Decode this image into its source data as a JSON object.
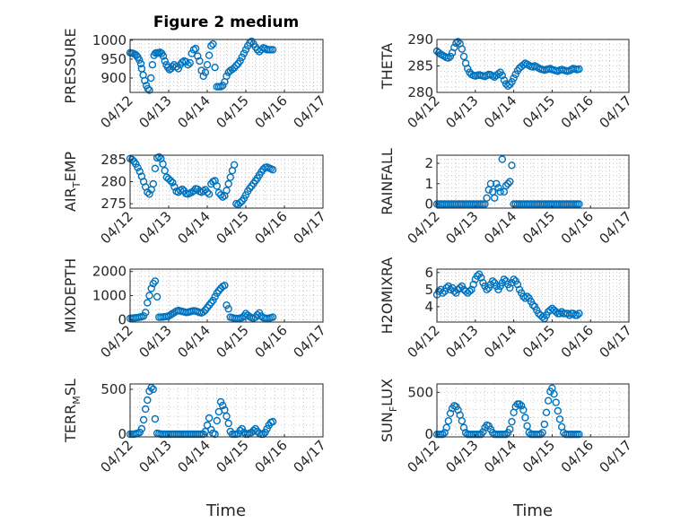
{
  "figure": {
    "title": "Figure 2 medium",
    "marker_color": "#0072bd",
    "x_ticks": [
      "04/12",
      "04/13",
      "04/14",
      "04/15",
      "04/16",
      "04/17"
    ],
    "x_label": "Time"
  },
  "chart_data": [
    {
      "type": "scatter",
      "title": "Figure 2 medium",
      "ylabel": "PRESSURE",
      "ylim": [
        862,
        1002
      ],
      "yticks": [
        900,
        950,
        1000
      ],
      "xlabel": "",
      "x": [
        0.0,
        0.04,
        0.08,
        0.12,
        0.16,
        0.2,
        0.24,
        0.28,
        0.3,
        0.34,
        0.38,
        0.42,
        0.46,
        0.5,
        0.54,
        0.58,
        0.62,
        0.66,
        0.7,
        0.74,
        0.78,
        0.82,
        0.86,
        0.9,
        0.94,
        0.98,
        1.02,
        1.06,
        1.1,
        1.14,
        1.2,
        1.25,
        1.3,
        1.35,
        1.4,
        1.45,
        1.5,
        1.55,
        1.6,
        1.65,
        1.7,
        1.75,
        1.8,
        1.85,
        1.9,
        1.95,
        2.0,
        2.05,
        2.1,
        2.15,
        2.2,
        2.25,
        2.3,
        2.35,
        2.4,
        2.45,
        2.5,
        2.55,
        2.6,
        2.65,
        2.7,
        2.75,
        2.8,
        2.85,
        2.9,
        2.95,
        3.0,
        3.05,
        3.1,
        3.15,
        3.2,
        3.25,
        3.3,
        3.35,
        3.4,
        3.45,
        3.5,
        3.55,
        3.6,
        3.65,
        3.7
      ],
      "y": [
        967,
        966,
        965,
        963,
        960,
        955,
        948,
        938,
        925,
        908,
        893,
        880,
        872,
        868,
        900,
        935,
        960,
        966,
        967,
        966,
        968,
        965,
        958,
        945,
        935,
        928,
        922,
        925,
        930,
        935,
        930,
        925,
        935,
        942,
        945,
        943,
        935,
        940,
        965,
        975,
        978,
        958,
        945,
        920,
        905,
        915,
        935,
        960,
        985,
        990,
        928,
        877,
        877,
        877,
        880,
        890,
        905,
        915,
        920,
        923,
        927,
        933,
        938,
        945,
        955,
        965,
        975,
        985,
        993,
        997,
        990,
        982,
        975,
        970,
        975,
        980,
        978,
        975,
        975,
        975,
        975
      ]
    },
    {
      "type": "scatter",
      "title": "",
      "ylabel": "THETA",
      "ylim": [
        280,
        290
      ],
      "yticks": [
        280,
        285,
        290
      ],
      "xlabel": "",
      "x": [
        0.0,
        0.05,
        0.1,
        0.15,
        0.2,
        0.25,
        0.3,
        0.35,
        0.4,
        0.45,
        0.5,
        0.55,
        0.6,
        0.65,
        0.7,
        0.75,
        0.8,
        0.85,
        0.9,
        0.95,
        1.0,
        1.05,
        1.1,
        1.15,
        1.2,
        1.25,
        1.3,
        1.35,
        1.4,
        1.45,
        1.5,
        1.55,
        1.6,
        1.65,
        1.7,
        1.75,
        1.8,
        1.85,
        1.9,
        1.95,
        2.0,
        2.05,
        2.1,
        2.15,
        2.2,
        2.25,
        2.3,
        2.35,
        2.4,
        2.45,
        2.5,
        2.55,
        2.6,
        2.65,
        2.7,
        2.75,
        2.8,
        2.85,
        2.9,
        2.95,
        3.0,
        3.05,
        3.1,
        3.15,
        3.2,
        3.25,
        3.3,
        3.35,
        3.4,
        3.45,
        3.5,
        3.55,
        3.6,
        3.65,
        3.7
      ],
      "y": [
        287.8,
        287.5,
        287.2,
        287.0,
        286.8,
        286.6,
        286.5,
        286.8,
        287.5,
        288.5,
        289.3,
        289.6,
        289.2,
        288.2,
        286.8,
        285.5,
        284.5,
        283.8,
        283.4,
        283.2,
        283.1,
        283.2,
        283.3,
        283.2,
        283.1,
        283.0,
        283.2,
        283.4,
        283.3,
        283.1,
        282.9,
        283.2,
        283.5,
        283.8,
        283.2,
        282.3,
        281.6,
        281.2,
        281.5,
        282.0,
        282.7,
        283.4,
        284.1,
        284.6,
        284.9,
        285.2,
        285.5,
        285.3,
        285.1,
        284.9,
        284.8,
        285.0,
        284.8,
        284.6,
        284.4,
        284.3,
        284.2,
        284.3,
        284.4,
        284.5,
        284.3,
        284.2,
        284.1,
        284.0,
        284.2,
        284.3,
        284.2,
        284.1,
        284.0,
        284.1,
        284.3,
        284.5,
        284.4,
        284.3,
        284.4
      ]
    },
    {
      "type": "scatter",
      "title": "",
      "ylabel": "AIR_TEMP",
      "ylim": [
        274,
        286
      ],
      "yticks": [
        275,
        280,
        285
      ],
      "xlabel": "",
      "x": [
        0.0,
        0.05,
        0.1,
        0.15,
        0.2,
        0.25,
        0.3,
        0.35,
        0.4,
        0.45,
        0.5,
        0.55,
        0.6,
        0.65,
        0.7,
        0.75,
        0.8,
        0.85,
        0.9,
        0.95,
        1.0,
        1.05,
        1.1,
        1.15,
        1.2,
        1.25,
        1.3,
        1.35,
        1.4,
        1.45,
        1.5,
        1.55,
        1.6,
        1.65,
        1.7,
        1.75,
        1.8,
        1.85,
        1.9,
        1.95,
        2.0,
        2.05,
        2.1,
        2.15,
        2.2,
        2.25,
        2.3,
        2.35,
        2.4,
        2.45,
        2.5,
        2.55,
        2.6,
        2.65,
        2.7,
        2.75,
        2.8,
        2.85,
        2.9,
        2.95,
        3.0,
        3.05,
        3.1,
        3.15,
        3.2,
        3.25,
        3.3,
        3.35,
        3.4,
        3.45,
        3.5,
        3.55,
        3.6,
        3.65,
        3.7
      ],
      "y": [
        285.2,
        285.0,
        284.6,
        284.0,
        283.2,
        282.3,
        281.2,
        280.0,
        278.8,
        277.6,
        277.2,
        278.2,
        279.5,
        283.0,
        285.4,
        285.6,
        285.2,
        284.0,
        282.5,
        281.0,
        280.6,
        280.2,
        279.8,
        278.8,
        277.8,
        277.6,
        278.0,
        278.3,
        277.9,
        277.3,
        277.2,
        277.4,
        277.6,
        277.9,
        278.4,
        278.3,
        277.8,
        277.6,
        277.9,
        278.2,
        277.6,
        277.2,
        279.5,
        280.0,
        280.2,
        279.0,
        277.5,
        277.0,
        276.5,
        276.8,
        278.0,
        279.5,
        281.0,
        282.5,
        283.8,
        275.0,
        274.8,
        275.2,
        275.6,
        276.2,
        277.0,
        277.8,
        278.5,
        279.0,
        279.6,
        280.2,
        280.8,
        281.5,
        282.2,
        282.8,
        283.2,
        283.3,
        283.1,
        282.9,
        282.7
      ]
    },
    {
      "type": "scatter",
      "title": "",
      "ylabel": "RAINFALL",
      "ylim": [
        -0.2,
        2.4
      ],
      "yticks": [
        0,
        1,
        2
      ],
      "xlabel": "",
      "x": [
        0.0,
        0.05,
        0.1,
        0.15,
        0.2,
        0.25,
        0.3,
        0.35,
        0.4,
        0.45,
        0.5,
        0.55,
        0.6,
        0.65,
        0.7,
        0.75,
        0.8,
        0.85,
        0.9,
        0.95,
        1.0,
        1.05,
        1.1,
        1.15,
        1.2,
        1.25,
        1.3,
        1.35,
        1.4,
        1.45,
        1.5,
        1.55,
        1.6,
        1.65,
        1.7,
        1.75,
        1.8,
        1.85,
        1.9,
        1.95,
        2.0,
        2.05,
        2.1,
        2.15,
        2.2,
        2.25,
        2.3,
        2.35,
        2.4,
        2.45,
        2.5,
        2.55,
        2.6,
        2.65,
        2.7,
        2.75,
        2.8,
        2.85,
        2.9,
        2.95,
        3.0,
        3.05,
        3.1,
        3.15,
        3.2,
        3.25,
        3.3,
        3.35,
        3.4,
        3.45,
        3.5,
        3.55,
        3.6,
        3.65,
        3.7
      ],
      "y": [
        0,
        0,
        0,
        0,
        0,
        0,
        0,
        0,
        0,
        0,
        0,
        0,
        0,
        0,
        0,
        0,
        0,
        0,
        0,
        0,
        0,
        0,
        0,
        0,
        0,
        0,
        0.3,
        0.7,
        1.0,
        0.6,
        0.3,
        1.0,
        0.8,
        0.6,
        2.2,
        0.6,
        0.9,
        1.0,
        1.1,
        1.9,
        0,
        0,
        0,
        0,
        0,
        0,
        0,
        0,
        0,
        0,
        0,
        0,
        0,
        0,
        0,
        0,
        0,
        0,
        0,
        0,
        0,
        0,
        0,
        0,
        0,
        0,
        0,
        0,
        0,
        0,
        0,
        0,
        0,
        0,
        0
      ]
    },
    {
      "type": "scatter",
      "title": "",
      "ylabel": "MIXDEPTH",
      "ylim": [
        -100,
        2100
      ],
      "yticks": [
        0,
        1000,
        2000
      ],
      "xlabel": "",
      "x": [
        0.0,
        0.05,
        0.1,
        0.15,
        0.2,
        0.25,
        0.3,
        0.35,
        0.4,
        0.45,
        0.5,
        0.55,
        0.6,
        0.65,
        0.7,
        0.75,
        0.8,
        0.85,
        0.9,
        0.95,
        1.0,
        1.05,
        1.1,
        1.15,
        1.2,
        1.25,
        1.3,
        1.35,
        1.4,
        1.45,
        1.5,
        1.55,
        1.6,
        1.65,
        1.7,
        1.75,
        1.8,
        1.85,
        1.9,
        1.95,
        2.0,
        2.05,
        2.1,
        2.15,
        2.2,
        2.25,
        2.3,
        2.35,
        2.4,
        2.45,
        2.5,
        2.55,
        2.6,
        2.65,
        2.7,
        2.75,
        2.8,
        2.85,
        2.9,
        2.95,
        3.0,
        3.05,
        3.1,
        3.15,
        3.2,
        3.25,
        3.3,
        3.35,
        3.4,
        3.45,
        3.5,
        3.55,
        3.6,
        3.65,
        3.7
      ],
      "y": [
        50,
        60,
        70,
        80,
        90,
        100,
        120,
        150,
        300,
        700,
        1000,
        1300,
        1500,
        1600,
        950,
        100,
        100,
        110,
        120,
        130,
        150,
        200,
        250,
        300,
        350,
        380,
        360,
        340,
        320,
        300,
        310,
        330,
        350,
        370,
        360,
        330,
        300,
        280,
        320,
        400,
        500,
        600,
        700,
        800,
        950,
        1100,
        1200,
        1300,
        1380,
        1420,
        600,
        450,
        100,
        80,
        60,
        50,
        40,
        60,
        80,
        150,
        250,
        180,
        120,
        80,
        60,
        100,
        200,
        280,
        150,
        80,
        60,
        50,
        60,
        80,
        100
      ]
    },
    {
      "type": "scatter",
      "title": "",
      "ylabel": "H2OMIXRA",
      "ylim": [
        3.1,
        6.2
      ],
      "yticks": [
        4,
        5,
        6
      ],
      "xlabel": "",
      "x": [
        0.0,
        0.05,
        0.1,
        0.15,
        0.2,
        0.25,
        0.3,
        0.35,
        0.4,
        0.45,
        0.5,
        0.55,
        0.6,
        0.65,
        0.7,
        0.75,
        0.8,
        0.85,
        0.9,
        0.95,
        1.0,
        1.05,
        1.1,
        1.15,
        1.2,
        1.25,
        1.3,
        1.35,
        1.4,
        1.45,
        1.5,
        1.55,
        1.6,
        1.65,
        1.7,
        1.75,
        1.8,
        1.85,
        1.9,
        1.95,
        2.0,
        2.05,
        2.1,
        2.15,
        2.2,
        2.25,
        2.3,
        2.35,
        2.4,
        2.45,
        2.5,
        2.55,
        2.6,
        2.65,
        2.7,
        2.75,
        2.8,
        2.85,
        2.9,
        2.95,
        3.0,
        3.05,
        3.1,
        3.15,
        3.2,
        3.25,
        3.3,
        3.35,
        3.4,
        3.45,
        3.5,
        3.55,
        3.6,
        3.65,
        3.7
      ],
      "y": [
        4.7,
        4.9,
        5.0,
        4.8,
        4.9,
        5.1,
        5.2,
        5.0,
        5.1,
        4.9,
        4.8,
        5.0,
        5.1,
        5.2,
        5.0,
        4.9,
        4.8,
        4.9,
        5.0,
        5.3,
        5.6,
        5.8,
        5.9,
        5.7,
        5.4,
        5.2,
        5.0,
        5.1,
        5.3,
        5.5,
        5.4,
        5.2,
        5.0,
        5.2,
        5.4,
        5.6,
        5.5,
        5.3,
        5.1,
        5.4,
        5.6,
        5.5,
        5.3,
        5.0,
        4.8,
        4.6,
        4.5,
        4.6,
        4.5,
        4.3,
        4.1,
        4.0,
        3.8,
        3.6,
        3.5,
        3.4,
        3.3,
        3.5,
        3.7,
        3.8,
        3.9,
        3.8,
        3.7,
        3.6,
        3.6,
        3.7,
        3.6,
        3.6,
        3.6,
        3.5,
        3.6,
        3.6,
        3.5,
        3.5,
        3.6
      ]
    },
    {
      "type": "scatter",
      "title": "",
      "ylabel": "TERR_MSL",
      "ylim": [
        -30,
        560
      ],
      "yticks": [
        0,
        500
      ],
      "xlabel": "Time",
      "x": [
        0.0,
        0.05,
        0.1,
        0.15,
        0.2,
        0.25,
        0.3,
        0.35,
        0.4,
        0.45,
        0.5,
        0.55,
        0.6,
        0.65,
        0.7,
        0.75,
        0.8,
        0.85,
        0.9,
        0.95,
        1.0,
        1.05,
        1.1,
        1.15,
        1.2,
        1.25,
        1.3,
        1.35,
        1.4,
        1.45,
        1.5,
        1.55,
        1.6,
        1.65,
        1.7,
        1.75,
        1.8,
        1.85,
        1.9,
        1.95,
        2.0,
        2.05,
        2.1,
        2.15,
        2.2,
        2.25,
        2.3,
        2.35,
        2.4,
        2.45,
        2.5,
        2.55,
        2.6,
        2.65,
        2.7,
        2.75,
        2.8,
        2.85,
        2.9,
        2.95,
        3.0,
        3.05,
        3.1,
        3.15,
        3.2,
        3.25,
        3.3,
        3.35,
        3.4,
        3.45,
        3.5,
        3.55,
        3.6,
        3.65,
        3.7
      ],
      "y": [
        0,
        0,
        0,
        5,
        10,
        20,
        60,
        160,
        280,
        380,
        480,
        520,
        500,
        170,
        10,
        5,
        0,
        0,
        0,
        0,
        0,
        0,
        0,
        0,
        0,
        0,
        0,
        0,
        0,
        0,
        0,
        0,
        0,
        0,
        0,
        0,
        0,
        0,
        0,
        30,
        100,
        180,
        50,
        10,
        0,
        150,
        250,
        360,
        320,
        270,
        200,
        120,
        30,
        0,
        0,
        0,
        5,
        40,
        60,
        20,
        0,
        0,
        10,
        20,
        40,
        60,
        30,
        10,
        0,
        0,
        20,
        60,
        100,
        130,
        140
      ]
    },
    {
      "type": "scatter",
      "title": "",
      "ylabel": "SUN_FLUX",
      "ylim": [
        -30,
        600
      ],
      "yticks": [
        0,
        500
      ],
      "xlabel": "Time",
      "x": [
        0.0,
        0.05,
        0.1,
        0.15,
        0.2,
        0.25,
        0.3,
        0.35,
        0.4,
        0.45,
        0.5,
        0.55,
        0.6,
        0.65,
        0.7,
        0.75,
        0.8,
        0.85,
        0.9,
        0.95,
        1.0,
        1.05,
        1.1,
        1.15,
        1.2,
        1.25,
        1.3,
        1.35,
        1.4,
        1.45,
        1.5,
        1.55,
        1.6,
        1.65,
        1.7,
        1.75,
        1.8,
        1.85,
        1.9,
        1.95,
        2.0,
        2.05,
        2.1,
        2.15,
        2.2,
        2.25,
        2.3,
        2.35,
        2.4,
        2.45,
        2.5,
        2.55,
        2.6,
        2.65,
        2.7,
        2.75,
        2.8,
        2.85,
        2.9,
        2.95,
        3.0,
        3.05,
        3.1,
        3.15,
        3.2,
        3.25,
        3.3,
        3.35,
        3.4,
        3.45,
        3.5,
        3.55,
        3.6,
        3.65,
        3.7
      ],
      "y": [
        0,
        0,
        0,
        0,
        20,
        80,
        160,
        250,
        310,
        340,
        330,
        290,
        230,
        160,
        80,
        20,
        0,
        0,
        0,
        0,
        0,
        0,
        0,
        0,
        30,
        80,
        110,
        100,
        60,
        20,
        0,
        0,
        0,
        0,
        0,
        0,
        0,
        20,
        60,
        150,
        260,
        330,
        360,
        360,
        340,
        290,
        200,
        100,
        20,
        0,
        0,
        0,
        0,
        0,
        0,
        20,
        120,
        260,
        400,
        510,
        550,
        480,
        380,
        280,
        180,
        90,
        20,
        0,
        0,
        0,
        0,
        0,
        0,
        0,
        0
      ]
    }
  ]
}
